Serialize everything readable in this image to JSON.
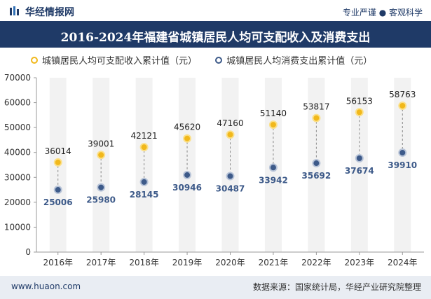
{
  "header": {
    "brand": "华经情报网",
    "tagline": "专业严谨 ● 客观科学"
  },
  "title": "2016-2024年福建省城镇居民人均可支配收入及消费支出",
  "footer": {
    "website": "www.huaon.com",
    "source": "数据来源：国家统计局，华经产业研究院整理"
  },
  "colors": {
    "title_bg": "#1f3a67",
    "income": "#f1b81b",
    "spending": "#3d5a89",
    "stripe": "#f2f2f2"
  },
  "chart_data": {
    "type": "scatter",
    "categories": [
      "2016年",
      "2017年",
      "2018年",
      "2019年",
      "2020年",
      "2021年",
      "2022年",
      "2023年",
      "2024年"
    ],
    "series": [
      {
        "name": "城镇居民人均可支配收入累计值（元）",
        "values": [
          36014,
          39001,
          42121,
          45620,
          47160,
          51140,
          53817,
          56153,
          58763
        ]
      },
      {
        "name": "城镇居民人均消费支出累计值（元）",
        "values": [
          25006,
          25980,
          28145,
          30946,
          30487,
          33942,
          35692,
          37674,
          39910
        ]
      }
    ],
    "ylim": [
      0,
      70000
    ],
    "yticks": [
      0,
      10000,
      20000,
      30000,
      40000,
      50000,
      60000,
      70000
    ],
    "legend_position": "top-left",
    "grid": false
  }
}
